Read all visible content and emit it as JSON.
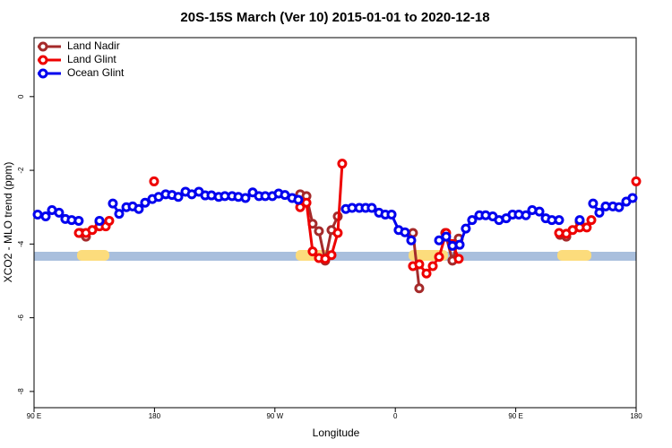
{
  "chart_data": {
    "type": "line",
    "title": "20S-15S March (Ver 10)   2015-01-01 to 2020-12-18",
    "x_label": "Longitude",
    "y_label": "XCO2 - MLO trend (ppm)",
    "xlim": [
      90,
      540
    ],
    "ylim": [
      -8.44,
      1.6
    ],
    "xticks": [
      {
        "value": 90,
        "label": "90 E"
      },
      180,
      {
        "value": 270,
        "label": "90 W"
      },
      {
        "value": 360,
        "label": "0"
      },
      {
        "value": 450,
        "label": "90 E"
      },
      {
        "value": 540,
        "label": "180"
      }
    ],
    "yticks": [
      0,
      -2,
      -4,
      -6,
      -8
    ],
    "legend": "upper left",
    "series": [
      {
        "name": "Land Nadir",
        "color": "#a52a2a",
        "x": [
          124.8,
          128.8,
          138.9,
          null,
          288.9,
          293.6,
          298.2,
          302.9,
          307.6,
          312.3,
          317.0,
          null,
          373.2,
          377.9,
          null,
          397.3,
          402.7,
          407.4,
          null,
          483.1,
          487.8,
          497.8
        ],
        "values": [
          -3.7,
          -3.8,
          -3.4,
          null,
          -2.65,
          -2.7,
          -3.45,
          -3.65,
          -4.45,
          -3.62,
          -3.25,
          null,
          -3.7,
          -5.2,
          null,
          -3.7,
          -4.45,
          -3.85,
          null,
          -3.75,
          -3.8,
          -3.4
        ]
      },
      {
        "name": "Land Glint",
        "color": "#ee0000",
        "x": [
          123.5,
          128.8,
          133.5,
          138.9,
          143.6,
          146.2,
          null,
          179.7,
          null,
          288.9,
          293.6,
          298.2,
          302.9,
          307.6,
          312.3,
          317.0,
          320.3,
          null,
          373.2,
          377.9,
          383.3,
          388.0,
          392.7,
          398.0,
          402.7,
          407.4,
          null,
          482.4,
          487.8,
          492.5,
          497.8,
          503.1,
          506.5,
          null,
          540
        ],
        "values": [
          -3.7,
          -3.7,
          -3.62,
          -3.52,
          -3.52,
          -3.37,
          null,
          -2.3,
          null,
          -3.0,
          -2.88,
          -4.2,
          -4.38,
          -4.4,
          -4.3,
          -3.7,
          -1.82,
          null,
          -4.6,
          -4.55,
          -4.8,
          -4.6,
          -4.35,
          -3.7,
          -4.0,
          -4.4,
          null,
          -3.7,
          -3.72,
          -3.62,
          -3.55,
          -3.55,
          -3.35,
          null,
          -2.3
        ]
      },
      {
        "name": "Ocean Glint",
        "color": "#0000ee",
        "x": [
          92.7,
          98.7,
          103.4,
          108.7,
          113.4,
          118.1,
          123.4,
          null,
          138.9,
          null,
          148.9,
          153.6,
          159.0,
          163.7,
          168.3,
          173.0,
          178.4,
          183.1,
          188.4,
          193.1,
          197.8,
          203.2,
          207.9,
          213.2,
          217.9,
          222.6,
          228.0,
          232.6,
          238.0,
          242.7,
          248.0,
          253.4,
          258.1,
          262.8,
          268.1,
          272.8,
          277.5,
          282.9,
          287.5,
          null,
          323.0,
          327.7,
          333.1,
          337.8,
          342.4,
          347.8,
          352.5,
          357.2,
          362.5,
          367.2,
          371.9,
          null,
          392.7,
          398.0,
          402.7,
          408.1,
          412.7,
          417.4,
          422.8,
          427.5,
          432.8,
          437.5,
          442.9,
          447.6,
          452.3,
          457.6,
          462.3,
          467.7,
          472.4,
          477.0,
          482.4,
          null,
          497.8,
          null,
          507.8,
          512.5,
          517.2,
          522.6,
          527.2,
          532.6,
          537.3
        ],
        "values": [
          -3.2,
          -3.25,
          -3.08,
          -3.15,
          -3.32,
          -3.35,
          -3.37,
          null,
          -3.37,
          null,
          -2.9,
          -3.18,
          -3.0,
          -2.98,
          -3.05,
          -2.88,
          -2.78,
          -2.72,
          -2.65,
          -2.67,
          -2.72,
          -2.58,
          -2.65,
          -2.58,
          -2.68,
          -2.68,
          -2.72,
          -2.7,
          -2.7,
          -2.72,
          -2.75,
          -2.6,
          -2.7,
          -2.7,
          -2.7,
          -2.63,
          -2.67,
          -2.75,
          -2.8,
          null,
          -3.05,
          -3.02,
          -3.02,
          -3.02,
          -3.02,
          -3.15,
          -3.2,
          -3.2,
          -3.62,
          -3.68,
          -3.9,
          null,
          -3.9,
          -3.8,
          -4.05,
          -4.02,
          -3.58,
          -3.35,
          -3.22,
          -3.22,
          -3.25,
          -3.35,
          -3.3,
          -3.2,
          -3.2,
          -3.22,
          -3.08,
          -3.12,
          -3.3,
          -3.35,
          -3.35,
          null,
          -3.35,
          null,
          -2.9,
          -3.15,
          -2.98,
          -2.98,
          -3.0,
          -2.85,
          -2.75
        ]
      }
    ]
  }
}
